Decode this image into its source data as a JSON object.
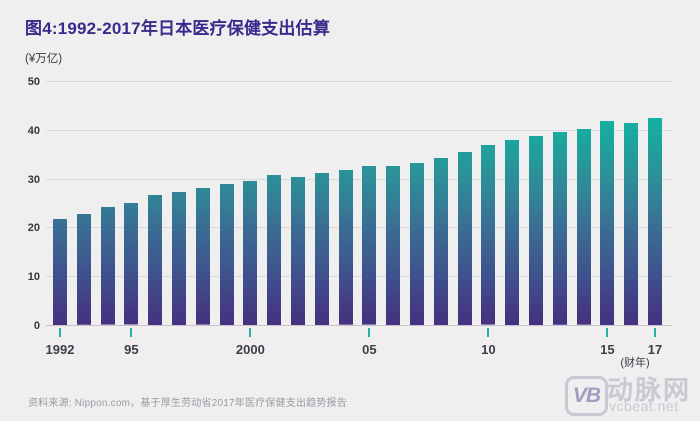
{
  "title": "图4:1992-2017年日本医疗保健支出估算",
  "unit_label": "(¥万亿)",
  "fiscal_year_label": "(财年)",
  "source": "资料来源: Nippon.com，基于厚生劳动省2017年医疗保健支出趋势报告",
  "watermark": {
    "vb": "VB",
    "name": "动脉网",
    "site": "vcbeat.net"
  },
  "colors": {
    "background": "#efeff0",
    "title": "#392a8b",
    "gridline": "#d9d9dc",
    "tick_teal": "#25b2a4",
    "source_gray": "#9b9ba3",
    "watermark_gray": "#c9c9d3"
  },
  "chart_data": {
    "type": "bar",
    "title": "图4:1992-2017年日本医疗保健支出估算",
    "ylabel": "(¥万亿)",
    "xlabel": "(财年)",
    "x": [
      1992,
      1993,
      1994,
      1995,
      1996,
      1997,
      1998,
      1999,
      2000,
      2001,
      2002,
      2003,
      2004,
      2005,
      2006,
      2007,
      2008,
      2009,
      2010,
      2011,
      2012,
      2013,
      2014,
      2015,
      2016,
      2017
    ],
    "values": [
      21.8,
      22.7,
      24.1,
      24.9,
      26.7,
      27.3,
      28.0,
      28.9,
      29.6,
      30.8,
      30.4,
      31.2,
      31.7,
      32.5,
      32.6,
      33.2,
      34.3,
      35.5,
      36.8,
      38.0,
      38.8,
      39.5,
      40.1,
      41.8,
      41.4,
      42.5
    ],
    "ylim": [
      0,
      50
    ],
    "y_ticks": [
      0,
      10,
      20,
      30,
      40,
      50
    ],
    "x_tick_labels": [
      {
        "year": 1992,
        "label": "1992"
      },
      {
        "year": 1995,
        "label": "95"
      },
      {
        "year": 2000,
        "label": "2000"
      },
      {
        "year": 2005,
        "label": "05"
      },
      {
        "year": 2010,
        "label": "10"
      },
      {
        "year": 2015,
        "label": "15"
      },
      {
        "year": 2017,
        "label": "17"
      }
    ],
    "grid": true,
    "legend": "none",
    "bar_gradient": [
      {
        "color": "#46307f",
        "pos": "0%"
      },
      {
        "color": "#3f508c",
        "pos": "20%"
      },
      {
        "color": "#3a6d94",
        "pos": "40%"
      },
      {
        "color": "#2d8e98",
        "pos": "60%"
      },
      {
        "color": "#12b2a2",
        "pos": "85%"
      },
      {
        "color": "#07c0a8",
        "pos": "100%"
      }
    ]
  }
}
